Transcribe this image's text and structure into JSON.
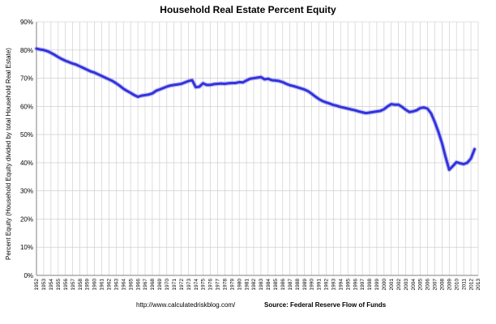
{
  "chart_data": {
    "type": "line",
    "title": "Household Real Estate Percent Equity",
    "xlabel": "",
    "ylabel": "Percent Equity (Household Equity divided by total Household Real Estate)",
    "footer_url": "http://www.calculatedriskblog.com/",
    "footer_source": "Source: Federal Reserve Flow of Funds",
    "ylim": [
      0,
      90
    ],
    "xlim": [
      1952,
      2013
    ],
    "y_ticks": [
      "0%",
      "10%",
      "20%",
      "30%",
      "40%",
      "50%",
      "60%",
      "70%",
      "80%",
      "90%"
    ],
    "x_ticks": [
      "1952",
      "1953",
      "1954",
      "1955",
      "1956",
      "1957",
      "1958",
      "1959",
      "1960",
      "1961",
      "1962",
      "1963",
      "1964",
      "1965",
      "1966",
      "1967",
      "1968",
      "1969",
      "1970",
      "1971",
      "1972",
      "1973",
      "1974",
      "1975",
      "1976",
      "1977",
      "1978",
      "1979",
      "1980",
      "1981",
      "1982",
      "1983",
      "1984",
      "1985",
      "1986",
      "1987",
      "1988",
      "1989",
      "1990",
      "1991",
      "1992",
      "1993",
      "1994",
      "1995",
      "1996",
      "1997",
      "1998",
      "1999",
      "2000",
      "2001",
      "2002",
      "2003",
      "2004",
      "2005",
      "2006",
      "2007",
      "2008",
      "2009",
      "2010",
      "2011",
      "2012",
      "2013"
    ],
    "grid": true,
    "line_color": "#3333dd",
    "series": [
      {
        "x": [
          1952.0,
          1952.5,
          1953.0,
          1953.5,
          1954.0,
          1954.5,
          1955.0,
          1955.5,
          1956.0,
          1956.5,
          1957.0,
          1957.5,
          1958.0,
          1958.5,
          1959.0,
          1959.5,
          1960.0,
          1960.5,
          1961.0,
          1961.5,
          1962.0,
          1962.5,
          1963.0,
          1963.5,
          1964.0,
          1964.5,
          1965.0,
          1965.5,
          1966.0,
          1966.5,
          1967.0,
          1967.5,
          1968.0,
          1968.5,
          1969.0,
          1969.5,
          1970.0,
          1970.5,
          1971.0,
          1971.5,
          1972.0,
          1972.5,
          1973.0,
          1973.5,
          1974.0,
          1974.5,
          1975.0,
          1975.5,
          1976.0,
          1976.5,
          1977.0,
          1977.5,
          1978.0,
          1978.5,
          1979.0,
          1979.5,
          1980.0,
          1980.5,
          1981.0,
          1981.5,
          1982.0,
          1982.5,
          1983.0,
          1983.5,
          1984.0,
          1984.5,
          1985.0,
          1985.5,
          1986.0,
          1986.5,
          1987.0,
          1987.5,
          1988.0,
          1988.5,
          1989.0,
          1989.5,
          1990.0,
          1990.5,
          1991.0,
          1991.5,
          1992.0,
          1992.5,
          1993.0,
          1993.5,
          1994.0,
          1994.5,
          1995.0,
          1995.5,
          1996.0,
          1996.5,
          1997.0,
          1997.5,
          1998.0,
          1998.5,
          1999.0,
          1999.5,
          2000.0,
          2000.5,
          2001.0,
          2001.5,
          2002.0,
          2002.5,
          2003.0,
          2003.5,
          2004.0,
          2004.5,
          2005.0,
          2005.5,
          2006.0,
          2006.5,
          2007.0,
          2007.5,
          2008.0,
          2008.5,
          2009.0,
          2009.5,
          2010.0,
          2010.5,
          2011.0,
          2011.5,
          2012.0,
          2012.5
        ],
        "y": [
          80.5,
          80.2,
          80.0,
          79.6,
          79.0,
          78.3,
          77.5,
          76.8,
          76.2,
          75.7,
          75.2,
          74.8,
          74.2,
          73.6,
          73.0,
          72.4,
          72.0,
          71.4,
          70.8,
          70.2,
          69.6,
          69.0,
          68.2,
          67.3,
          66.3,
          65.5,
          64.8,
          64.0,
          63.4,
          63.8,
          64.0,
          64.2,
          64.6,
          65.5,
          66.0,
          66.5,
          67.0,
          67.4,
          67.6,
          67.8,
          68.0,
          68.5,
          69.0,
          69.3,
          66.8,
          67.0,
          68.2,
          67.6,
          67.6,
          67.9,
          68.0,
          68.1,
          68.0,
          68.2,
          68.3,
          68.3,
          68.6,
          68.5,
          69.2,
          69.8,
          70.0,
          70.2,
          70.4,
          69.6,
          69.8,
          69.3,
          69.2,
          69.0,
          68.6,
          68.0,
          67.5,
          67.2,
          66.8,
          66.4,
          66.0,
          65.4,
          64.5,
          63.5,
          62.6,
          61.9,
          61.4,
          61.0,
          60.5,
          60.2,
          59.8,
          59.5,
          59.2,
          58.9,
          58.6,
          58.2,
          57.9,
          57.6,
          57.8,
          58.0,
          58.2,
          58.4,
          59.0,
          60.0,
          60.8,
          60.6,
          60.6,
          59.8,
          58.8,
          58.0,
          58.2,
          58.6,
          59.4,
          59.6,
          59.2,
          57.5,
          54.5,
          51.0,
          47.0,
          42.0,
          37.5,
          38.8,
          40.2,
          39.8,
          39.5,
          40.0,
          41.5,
          44.8
        ]
      }
    ]
  }
}
